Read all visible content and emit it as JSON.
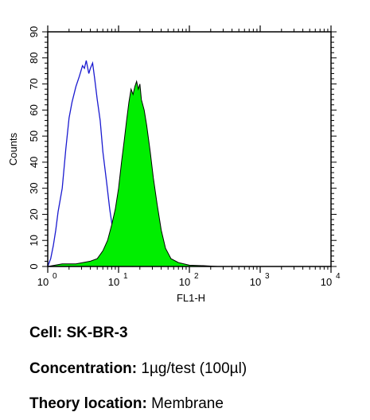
{
  "chart_data": {
    "type": "area",
    "title": "",
    "xlabel": "FL1-H",
    "ylabel": "Counts",
    "x_scale": "log",
    "xlim": [
      1,
      10000
    ],
    "ylim": [
      0,
      90
    ],
    "x_ticks": [
      {
        "value": 1,
        "base": "10",
        "exp": "0"
      },
      {
        "value": 10,
        "base": "10",
        "exp": "1"
      },
      {
        "value": 100,
        "base": "10",
        "exp": "2"
      },
      {
        "value": 1000,
        "base": "10",
        "exp": "3"
      },
      {
        "value": 10000,
        "base": "10",
        "exp": "4"
      }
    ],
    "y_ticks": [
      "0",
      "10",
      "20",
      "30",
      "40",
      "50",
      "60",
      "70",
      "80",
      "90"
    ],
    "grid": false,
    "series": [
      {
        "style": "outline",
        "color": "#1a1ad0",
        "points": [
          [
            1.0,
            0
          ],
          [
            1.1,
            3
          ],
          [
            1.2,
            8
          ],
          [
            1.3,
            14
          ],
          [
            1.4,
            21
          ],
          [
            1.6,
            30
          ],
          [
            1.8,
            45
          ],
          [
            2.0,
            57
          ],
          [
            2.2,
            63
          ],
          [
            2.5,
            69
          ],
          [
            2.8,
            73
          ],
          [
            3.1,
            77
          ],
          [
            3.3,
            76
          ],
          [
            3.5,
            79
          ],
          [
            3.8,
            74
          ],
          [
            4.0,
            76
          ],
          [
            4.3,
            78
          ],
          [
            4.6,
            72
          ],
          [
            5.0,
            64
          ],
          [
            5.5,
            56
          ],
          [
            6.0,
            44
          ],
          [
            6.8,
            32
          ],
          [
            7.5,
            22
          ],
          [
            8.5,
            12
          ],
          [
            9.5,
            5
          ],
          [
            11,
            2
          ],
          [
            13,
            0.5
          ],
          [
            16,
            0
          ]
        ]
      },
      {
        "style": "filled",
        "color": "#00ee00",
        "points": [
          [
            1.0,
            0
          ],
          [
            1.6,
            1
          ],
          [
            2.5,
            1
          ],
          [
            4.0,
            2
          ],
          [
            5.0,
            3
          ],
          [
            6.0,
            6
          ],
          [
            7.0,
            10
          ],
          [
            8.0,
            16
          ],
          [
            9.0,
            22
          ],
          [
            10,
            30
          ],
          [
            11,
            40
          ],
          [
            12,
            48
          ],
          [
            13,
            56
          ],
          [
            14,
            63
          ],
          [
            15,
            68
          ],
          [
            16,
            66
          ],
          [
            17,
            69
          ],
          [
            18,
            71
          ],
          [
            19,
            68
          ],
          [
            20,
            70
          ],
          [
            21,
            64
          ],
          [
            23,
            60
          ],
          [
            25,
            54
          ],
          [
            28,
            44
          ],
          [
            31,
            34
          ],
          [
            35,
            24
          ],
          [
            40,
            14
          ],
          [
            46,
            7
          ],
          [
            55,
            3
          ],
          [
            70,
            1.5
          ],
          [
            100,
            0.5
          ],
          [
            160,
            0.3
          ],
          [
            250,
            0
          ]
        ]
      }
    ]
  },
  "info": {
    "cell_label": "Cell:",
    "cell_value": "SK-BR-3",
    "concentration_label": "Concentration:",
    "concentration_value": "1µg/test (100µl)",
    "theory_label": "Theory location:",
    "theory_value": "Membrane"
  }
}
